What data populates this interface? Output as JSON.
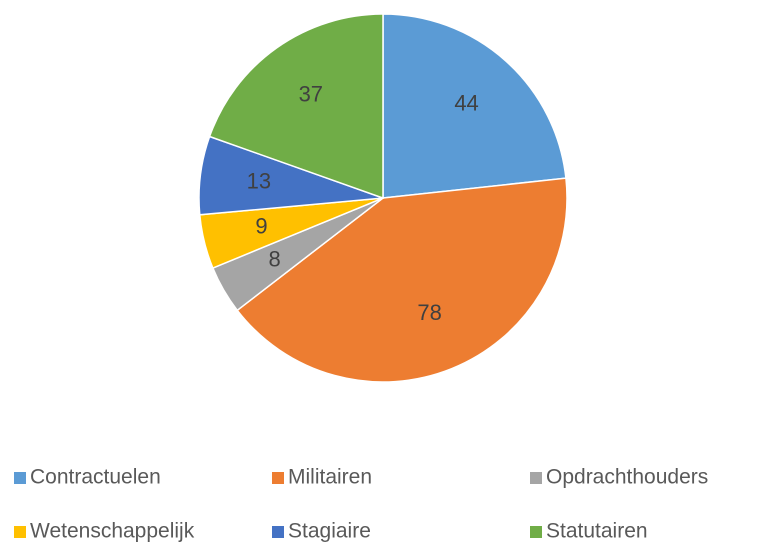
{
  "chart_data": {
    "type": "pie",
    "categories": [
      "Contractuelen",
      "Militairen",
      "Opdrachthouders",
      "Wetenschappelijk",
      "Stagiaire",
      "Statutairen"
    ],
    "values": [
      44,
      78,
      8,
      9,
      13,
      37
    ],
    "colors": [
      "#5b9bd5",
      "#ed7d31",
      "#a5a5a5",
      "#ffc000",
      "#4472c4",
      "#70ad47"
    ],
    "legend": "bottom"
  }
}
